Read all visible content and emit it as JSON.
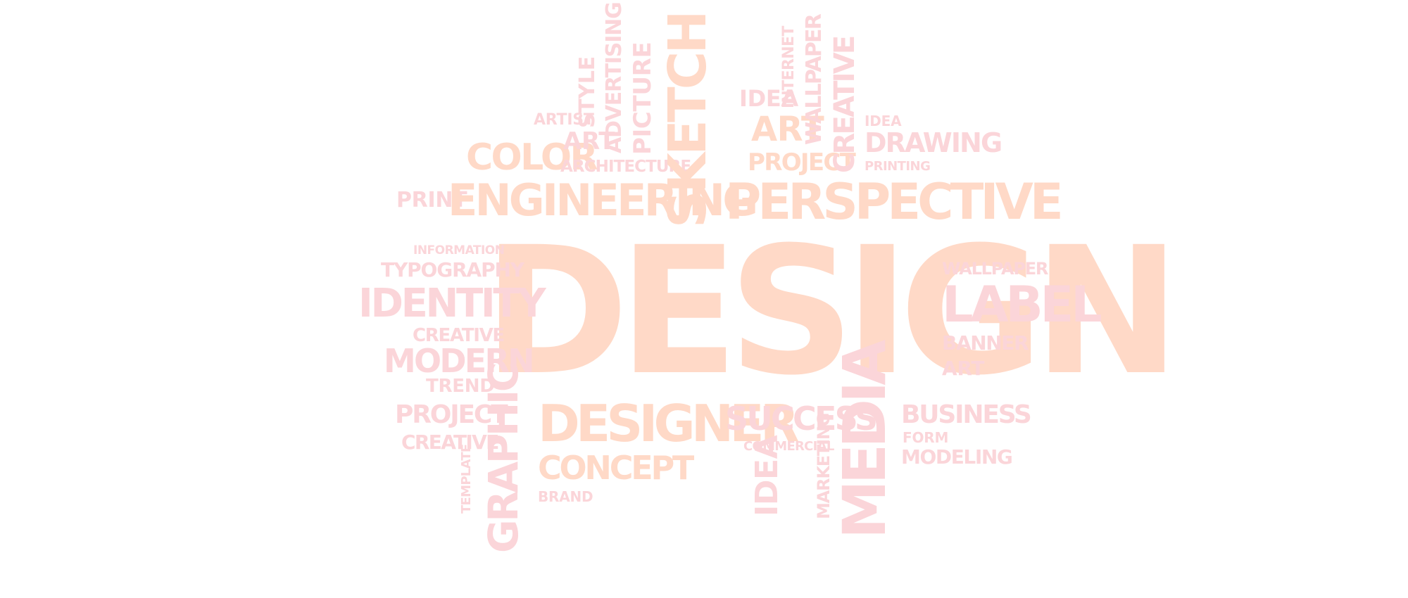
{
  "palette": {
    "peach": "#ffd9c7",
    "pink": "#fbd5d9",
    "background": "#ffffff"
  },
  "words": {
    "design": "DESIGN",
    "engineering": "ENGINEERING",
    "sketch": "SKETCH",
    "perspective": "PERSPECTIVE",
    "color": "COLOR",
    "art_top_left": "ART",
    "artist": "ARTIST",
    "style": "STYLE",
    "advertising": "ADVERTISING",
    "picture": "PICTURE",
    "architecture": "ARCHITECTURE",
    "print": "PRINT",
    "idea_top": "IDEA",
    "internet": "INTERNET",
    "wallpaper_vertical": "WALLPAPER",
    "creative_vertical": "CREATIVE",
    "idea_small": "IDEA",
    "drawing": "DRAWING",
    "art_top_right": "ART",
    "project_top": "PROJECT",
    "printing": "PRINTING",
    "information": "INFORMATION",
    "typography": "TYPOGRAPHY",
    "identity": "IDENTITY",
    "creative_left": "CREATIVE",
    "modern": "MODERN",
    "trend": "TREND",
    "project_left": "PROJECT",
    "creative_bottom_left": "CREATIVE",
    "template": "TEMPLATE",
    "graphic": "GRAPHIC",
    "designer": "DESIGNER",
    "concept": "CONCEPT",
    "brand": "BRAND",
    "success": "SUCCESS",
    "commercial": "COMMERCIAL",
    "idea_bottom": "IDEA",
    "marketing": "MARKETING",
    "media": "MEDIA",
    "business": "BUSINESS",
    "form": "FORM",
    "modeling": "MODELING",
    "wallpaper_right": "WALLPAPER",
    "label": "LABEL",
    "banner": "BANNER",
    "art_right": "ART"
  }
}
